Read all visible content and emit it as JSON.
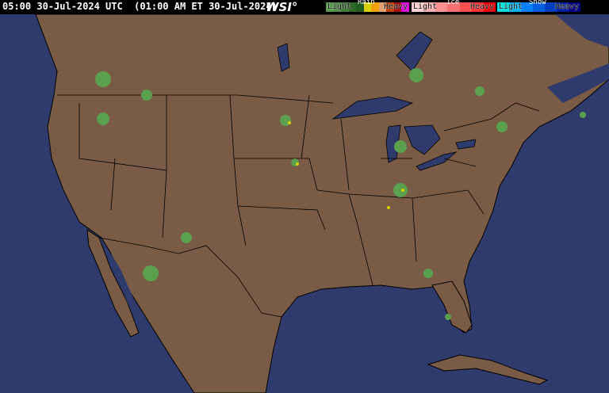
{
  "header": {
    "title": "05:00 30-Jul-2024 UTC  (01:00 AM ET 30-Jul-2024)",
    "logo": "WSI°"
  },
  "legend": {
    "rain": {
      "label": "Rain",
      "light": "Light",
      "heavy": "Heavy",
      "colors": [
        "#5a9a4e",
        "#4f8a44",
        "#3f7a36",
        "#2f6a2a",
        "#1f5a1e",
        "#d8d000",
        "#f0a000",
        "#e0a070",
        "#c04000",
        "#a01010",
        "#e000e0"
      ]
    },
    "ice": {
      "label": "Ice",
      "light": "Light",
      "heavy": "Heavy",
      "colors": [
        "#ffd0d0",
        "#ffb0b0",
        "#ff9090",
        "#ff7070",
        "#ff5050",
        "#ff3030",
        "#f00000"
      ]
    },
    "snow": {
      "label": "Snow",
      "light": "Light",
      "heavy": "Heavy",
      "colors": [
        "#00e0e0",
        "#00b0f0",
        "#0080ff",
        "#0060e0",
        "#0040c0",
        "#0020a0",
        "#000080"
      ]
    }
  },
  "map": {
    "ocean_color": "#2e3b6c",
    "land_color": "#7a5c46",
    "border_color": "#000000",
    "lake_color": "#2e3b6c",
    "radar_color": "#5aa04e"
  }
}
